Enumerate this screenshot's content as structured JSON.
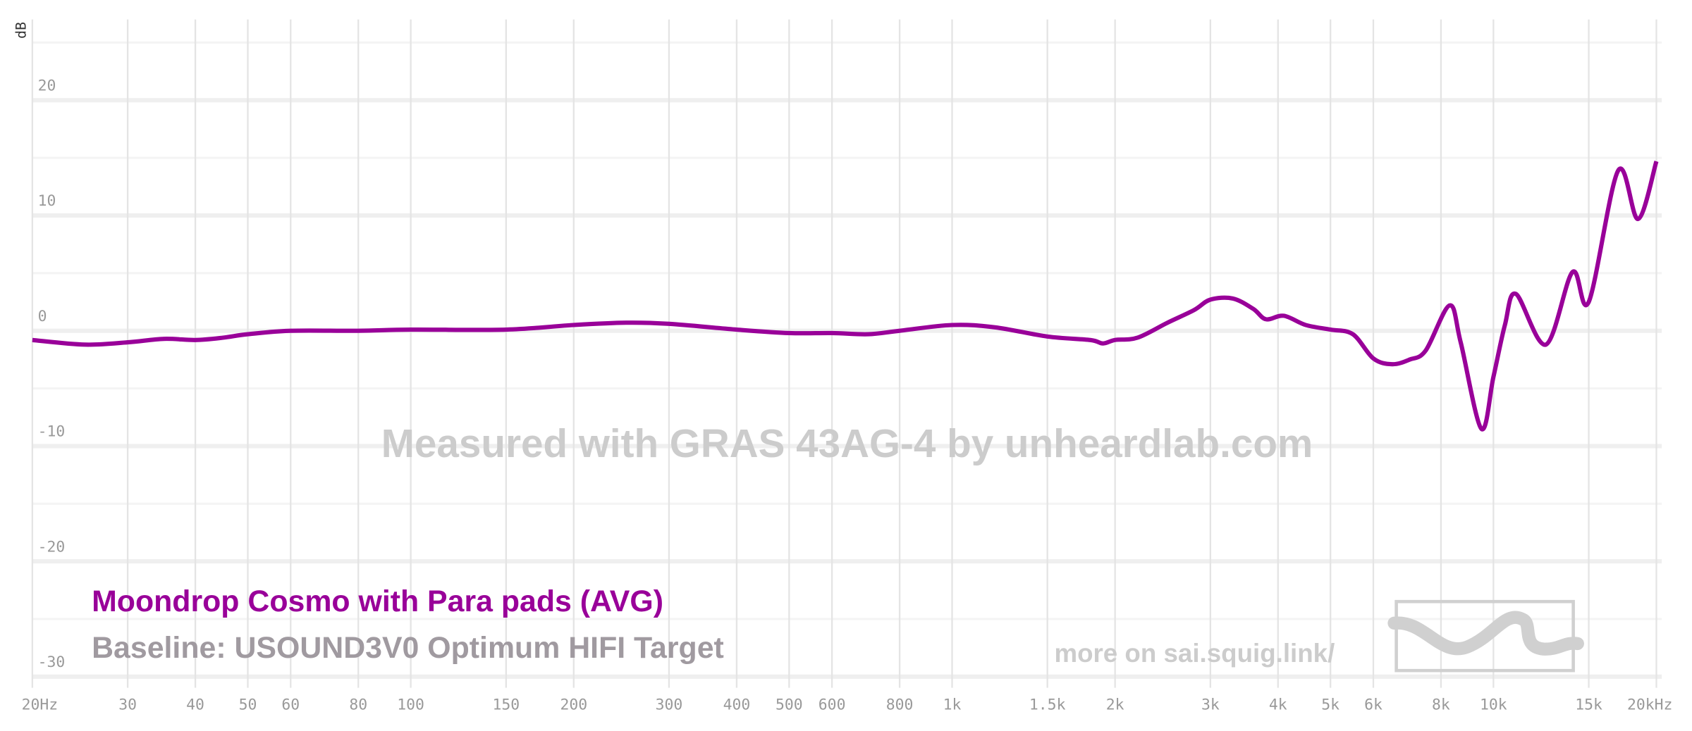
{
  "chart_data": {
    "type": "line",
    "y_label": "dB",
    "watermark": "Measured with GRAS 43AG-4 by unheardlab.com",
    "baseline": "Baseline: USOUND3V0 Optimum HIFI Target",
    "footer_link": "more on sai.squig.link/",
    "x_scale": "log",
    "xlim": [
      20,
      20000
    ],
    "xticks": [
      {
        "value": 20,
        "label": "20Hz"
      },
      30,
      40,
      50,
      60,
      80,
      100,
      150,
      200,
      300,
      400,
      500,
      600,
      800,
      {
        "value": 1000,
        "label": "1k"
      },
      {
        "value": 1500,
        "label": "1.5k"
      },
      {
        "value": 2000,
        "label": "2k"
      },
      {
        "value": 3000,
        "label": "3k"
      },
      {
        "value": 4000,
        "label": "4k"
      },
      {
        "value": 5000,
        "label": "5k"
      },
      {
        "value": 6000,
        "label": "6k"
      },
      {
        "value": 8000,
        "label": "8k"
      },
      {
        "value": 10000,
        "label": "10k"
      },
      {
        "value": 15000,
        "label": "15k"
      },
      {
        "value": 20000,
        "label": "20kHz"
      }
    ],
    "ylim": [
      -30.5,
      27
    ],
    "yticks": [
      20,
      10,
      0,
      -10,
      -20,
      -30
    ],
    "minor_yticks": [
      25,
      15,
      5,
      -5,
      -15,
      -25
    ],
    "grid": true,
    "x": [
      20,
      25,
      30,
      35,
      40,
      45,
      50,
      60,
      80,
      100,
      150,
      200,
      250,
      300,
      400,
      500,
      600,
      700,
      800,
      1000,
      1200,
      1500,
      1800,
      1900,
      2000,
      2200,
      2500,
      2800,
      3000,
      3300,
      3600,
      3800,
      4100,
      4500,
      5000,
      5500,
      6000,
      6500,
      7000,
      7500,
      8300,
      8700,
      9500,
      10000,
      10500,
      11000,
      12500,
      14000,
      15000,
      17000,
      18500,
      20000
    ],
    "series": [
      {
        "name": "Moondrop Cosmo with Para pads (AVG)",
        "color": "#990099",
        "values": [
          -0.8,
          -1.2,
          -1.0,
          -0.7,
          -0.8,
          -0.6,
          -0.3,
          0,
          0,
          0.1,
          0.1,
          0.5,
          0.7,
          0.6,
          0.1,
          -0.2,
          -0.2,
          -0.3,
          0,
          0.5,
          0.3,
          -0.5,
          -0.8,
          -1.1,
          -0.8,
          -0.6,
          0.7,
          1.8,
          2.7,
          2.8,
          1.9,
          1.0,
          1.3,
          0.5,
          0.1,
          -0.3,
          -2.4,
          -2.9,
          -2.5,
          -1.7,
          2.2,
          -1.0,
          -8.5,
          -4.0,
          0.5,
          3.2,
          -1.2,
          5.1,
          2.5,
          13.9,
          9.7,
          14.7
        ]
      }
    ]
  }
}
